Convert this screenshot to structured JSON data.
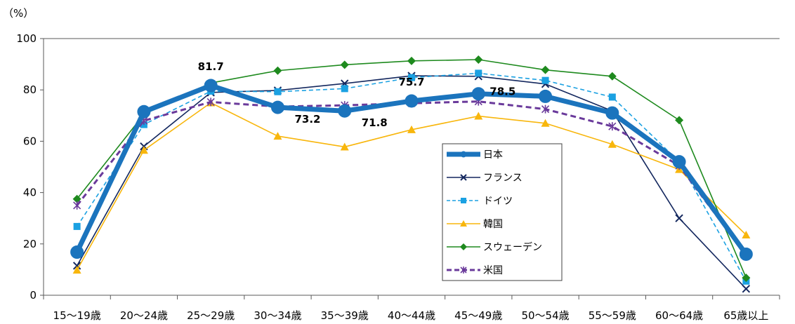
{
  "chart_data": {
    "type": "line",
    "unit_label": "（%）",
    "ylim": [
      0,
      100
    ],
    "yticks": [
      0,
      20,
      40,
      60,
      80,
      100
    ],
    "categories": [
      "15～19歳",
      "20～24歳",
      "25～29歳",
      "30～34歳",
      "35～39歳",
      "40～44歳",
      "45～49歳",
      "50～54歳",
      "55～59歳",
      "60～64歳",
      "65歳以上"
    ],
    "grid": false,
    "legend_position": "bottom-center",
    "series": [
      {
        "name": "日本",
        "color": "#1b74bd",
        "values": [
          16.8,
          71.5,
          81.7,
          73.2,
          71.8,
          75.7,
          78.5,
          77.5,
          71.0,
          52.0,
          16.0
        ],
        "marker": "circle",
        "dash": "solid",
        "width": 7
      },
      {
        "name": "フランス",
        "color": "#13275e",
        "values": [
          11.5,
          58.0,
          79.0,
          79.8,
          82.5,
          85.5,
          85.3,
          82.3,
          71.8,
          30.0,
          2.5
        ],
        "marker": "x",
        "dash": "solid",
        "width": 1.6
      },
      {
        "name": "ドイツ",
        "color": "#1ba1e2",
        "values": [
          26.8,
          66.5,
          79.5,
          79.3,
          80.5,
          84.8,
          86.5,
          83.7,
          77.2,
          52.0,
          5.5
        ],
        "marker": "square",
        "dash": "dashed",
        "width": 1.6
      },
      {
        "name": "韓国",
        "color": "#f8b60c",
        "values": [
          9.8,
          56.5,
          75.0,
          62.0,
          57.8,
          64.5,
          69.8,
          67.0,
          58.8,
          49.0,
          23.5
        ],
        "marker": "triangle",
        "dash": "solid",
        "width": 1.6
      },
      {
        "name": "スウェーデン",
        "color": "#1e8a1e",
        "values": [
          37.5,
          70.5,
          82.7,
          87.5,
          89.8,
          91.3,
          91.8,
          87.8,
          85.3,
          68.2,
          6.8
        ],
        "marker": "diamond",
        "dash": "solid",
        "width": 1.6
      },
      {
        "name": "米国",
        "color": "#6a3a9b",
        "values": [
          35.0,
          68.0,
          75.3,
          73.5,
          74.0,
          74.8,
          75.5,
          72.5,
          65.8,
          50.5,
          15.5
        ],
        "marker": "star",
        "dash": "dashed",
        "width": 3
      }
    ],
    "data_labels": [
      {
        "series": "日本",
        "category": "25～29歳",
        "text": "81.7",
        "placement": "above"
      },
      {
        "series": "日本",
        "category": "30～34歳",
        "text": "73.2",
        "placement": "below-right"
      },
      {
        "series": "日本",
        "category": "35～39歳",
        "text": "71.8",
        "placement": "below-right"
      },
      {
        "series": "日本",
        "category": "40～44歳",
        "text": "75.7",
        "placement": "above"
      },
      {
        "series": "日本",
        "category": "45～49歳",
        "text": "78.5",
        "placement": "right"
      }
    ]
  }
}
